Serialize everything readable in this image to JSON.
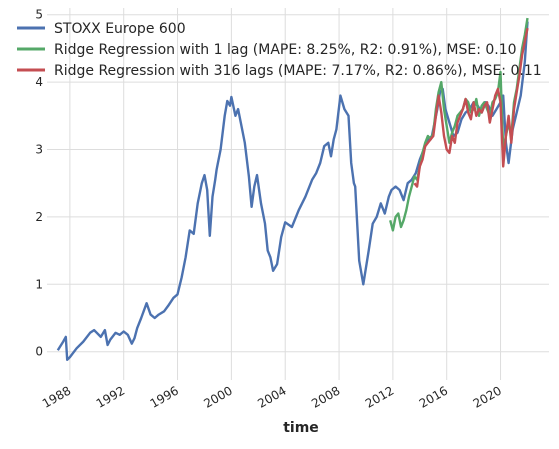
{
  "chart_data": {
    "type": "line",
    "title": "",
    "xlabel": "time",
    "ylabel": "",
    "xlim": [
      1986.3,
      2023.6
    ],
    "ylim": [
      -0.42,
      5.1
    ],
    "grid": true,
    "legend_position": "top-left",
    "x_ticks": [
      {
        "value": 1988,
        "label": "1988"
      },
      {
        "value": 1992,
        "label": "1992"
      },
      {
        "value": 1996,
        "label": "1996"
      },
      {
        "value": 2000,
        "label": "2000"
      },
      {
        "value": 2004,
        "label": "2004"
      },
      {
        "value": 2008,
        "label": "2008"
      },
      {
        "value": 2012,
        "label": "2012"
      },
      {
        "value": 2016,
        "label": "2016"
      },
      {
        "value": 2020,
        "label": "2020"
      }
    ],
    "y_ticks": [
      {
        "value": 0,
        "label": "0"
      },
      {
        "value": 1,
        "label": "1"
      },
      {
        "value": 2,
        "label": "2"
      },
      {
        "value": 3,
        "label": "3"
      },
      {
        "value": 4,
        "label": "4"
      },
      {
        "value": 5,
        "label": "5"
      }
    ],
    "series": [
      {
        "name": "STOXX Europe 600",
        "color": "#4c72b0",
        "x": [
          1987.1,
          1987.5,
          1987.7,
          1987.8,
          1988.0,
          1988.5,
          1989.0,
          1989.5,
          1989.8,
          1990.0,
          1990.3,
          1990.6,
          1990.8,
          1991.0,
          1991.4,
          1991.7,
          1992.0,
          1992.3,
          1992.6,
          1992.8,
          1993.0,
          1993.3,
          1993.7,
          1994.0,
          1994.3,
          1994.6,
          1995.0,
          1995.3,
          1995.7,
          1996.0,
          1996.3,
          1996.6,
          1996.9,
          1997.2,
          1997.5,
          1997.8,
          1998.0,
          1998.2,
          1998.4,
          1998.6,
          1998.8,
          1998.9,
          1999.0,
          1999.2,
          1999.5,
          1999.7,
          1999.9,
          2000.0,
          2000.3,
          2000.5,
          2000.7,
          2001.0,
          2001.3,
          2001.5,
          2001.7,
          2001.9,
          2002.2,
          2002.5,
          2002.7,
          2002.9,
          2003.1,
          2003.4,
          2003.7,
          2004.0,
          2004.5,
          2005.0,
          2005.5,
          2006.0,
          2006.3,
          2006.6,
          2006.9,
          2007.2,
          2007.4,
          2007.6,
          2007.8,
          2008.1,
          2008.4,
          2008.7,
          2008.9,
          2009.1,
          2009.2,
          2009.5,
          2009.8,
          2010.2,
          2010.5,
          2010.8,
          2011.1,
          2011.4,
          2011.7,
          2011.9,
          2012.2,
          2012.5,
          2012.8,
          2013.1,
          2013.4,
          2013.7,
          2014.0,
          2014.3,
          2014.6,
          2014.9,
          2015.1,
          2015.3,
          2015.5,
          2015.7,
          2015.9,
          2016.2,
          2016.5,
          2016.8,
          2017.1,
          2017.4,
          2017.7,
          2018.0,
          2018.3,
          2018.6,
          2018.9,
          2019.1,
          2019.4,
          2019.7,
          2020.0,
          2020.2,
          2020.4,
          2020.6,
          2020.9,
          2021.2,
          2021.5,
          2021.8,
          2022.0
        ],
        "y": [
          0.02,
          0.15,
          0.22,
          -0.12,
          -0.08,
          0.05,
          0.15,
          0.28,
          0.32,
          0.28,
          0.22,
          0.32,
          0.1,
          0.18,
          0.28,
          0.25,
          0.3,
          0.25,
          0.12,
          0.2,
          0.35,
          0.5,
          0.72,
          0.55,
          0.5,
          0.55,
          0.6,
          0.68,
          0.8,
          0.85,
          1.1,
          1.4,
          1.8,
          1.75,
          2.2,
          2.5,
          2.62,
          2.4,
          1.72,
          2.3,
          2.55,
          2.7,
          2.8,
          3.0,
          3.5,
          3.72,
          3.65,
          3.78,
          3.5,
          3.6,
          3.4,
          3.1,
          2.6,
          2.15,
          2.45,
          2.62,
          2.2,
          1.9,
          1.5,
          1.4,
          1.2,
          1.3,
          1.7,
          1.92,
          1.85,
          2.1,
          2.3,
          2.55,
          2.65,
          2.8,
          3.05,
          3.1,
          2.9,
          3.15,
          3.3,
          3.8,
          3.6,
          3.5,
          2.8,
          2.5,
          2.45,
          1.35,
          1.0,
          1.5,
          1.9,
          2.0,
          2.2,
          2.05,
          2.3,
          2.4,
          2.45,
          2.4,
          2.25,
          2.5,
          2.55,
          2.65,
          2.85,
          3.0,
          3.15,
          3.2,
          3.4,
          3.6,
          3.85,
          3.9,
          3.6,
          3.4,
          3.2,
          3.25,
          3.45,
          3.55,
          3.6,
          3.7,
          3.65,
          3.55,
          3.7,
          3.65,
          3.5,
          3.6,
          3.7,
          3.8,
          3.1,
          2.8,
          3.3,
          3.55,
          3.8,
          4.3,
          4.9
        ]
      },
      {
        "name": "Ridge Regression with 1 lag (MAPE: 8.25%, R2: 0.91%), MSE: 0.10",
        "color": "#55a868",
        "x": [
          2011.8,
          2012.0,
          2012.2,
          2012.4,
          2012.6,
          2012.8,
          2013.0,
          2013.2,
          2013.4,
          2013.6,
          2013.8,
          2014.0,
          2014.2,
          2014.4,
          2014.6,
          2014.8,
          2015.0,
          2015.2,
          2015.4,
          2015.6,
          2015.8,
          2016.0,
          2016.2,
          2016.4,
          2016.6,
          2016.8,
          2017.0,
          2017.2,
          2017.4,
          2017.6,
          2017.8,
          2018.0,
          2018.2,
          2018.4,
          2018.6,
          2018.8,
          2019.0,
          2019.2,
          2019.4,
          2019.6,
          2019.8,
          2020.0,
          2020.2,
          2020.4,
          2020.6,
          2020.8,
          2021.0,
          2021.2,
          2021.4,
          2021.6,
          2021.8,
          2022.0
        ],
        "y": [
          1.95,
          1.8,
          2.0,
          2.05,
          1.85,
          1.95,
          2.1,
          2.3,
          2.45,
          2.6,
          2.55,
          2.75,
          2.95,
          3.1,
          3.2,
          3.15,
          3.25,
          3.6,
          3.85,
          4.0,
          3.6,
          3.35,
          3.1,
          3.25,
          3.35,
          3.5,
          3.55,
          3.6,
          3.75,
          3.7,
          3.55,
          3.6,
          3.75,
          3.5,
          3.65,
          3.7,
          3.6,
          3.5,
          3.7,
          3.75,
          3.85,
          4.15,
          3.0,
          3.2,
          3.4,
          3.2,
          3.7,
          3.9,
          4.2,
          4.5,
          4.7,
          4.95
        ]
      },
      {
        "name": "Ridge Regression with 316 lags (MAPE: 7.17%, R2: 0.86%), MSE: 0.11",
        "color": "#c44e52",
        "x": [
          2013.6,
          2013.8,
          2014.0,
          2014.2,
          2014.4,
          2014.6,
          2014.8,
          2015.0,
          2015.2,
          2015.4,
          2015.6,
          2015.8,
          2016.0,
          2016.2,
          2016.4,
          2016.6,
          2016.8,
          2017.0,
          2017.2,
          2017.4,
          2017.6,
          2017.8,
          2018.0,
          2018.2,
          2018.4,
          2018.6,
          2018.8,
          2019.0,
          2019.2,
          2019.4,
          2019.6,
          2019.8,
          2020.0,
          2020.2,
          2020.4,
          2020.6,
          2020.8,
          2021.0,
          2021.2,
          2021.4,
          2021.6,
          2021.8,
          2022.0
        ],
        "y": [
          2.5,
          2.45,
          2.75,
          2.85,
          3.05,
          3.1,
          3.15,
          3.2,
          3.5,
          3.8,
          3.55,
          3.2,
          3.0,
          2.95,
          3.2,
          3.1,
          3.4,
          3.5,
          3.6,
          3.75,
          3.55,
          3.45,
          3.7,
          3.5,
          3.6,
          3.55,
          3.65,
          3.7,
          3.4,
          3.6,
          3.8,
          3.9,
          3.7,
          2.75,
          3.2,
          3.5,
          3.1,
          3.6,
          3.85,
          4.1,
          4.4,
          4.6,
          4.8
        ]
      }
    ]
  }
}
